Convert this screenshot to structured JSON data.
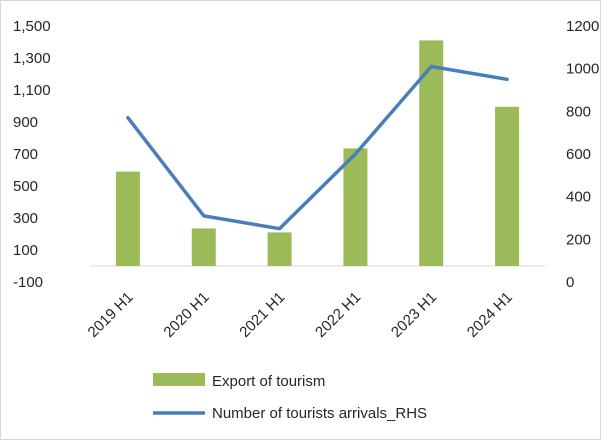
{
  "chart_data": {
    "type": "bar",
    "categories": [
      "2019 H1",
      "2020 H1",
      "2021 H1",
      "2022 H1",
      "2023 H1",
      "2024 H1"
    ],
    "series": [
      {
        "name": "Export of tourism",
        "type": "bar",
        "axis": "left",
        "color": "#9bbb59",
        "values": [
          590,
          235,
          210,
          735,
          1410,
          995
        ]
      },
      {
        "name": "Number of tourists arrivals_RHS",
        "type": "line",
        "axis": "right",
        "color": "#4a7ebb",
        "values": [
          770,
          310,
          250,
          600,
          1010,
          950
        ]
      }
    ],
    "y_left": {
      "ylim": [
        -100,
        1500
      ],
      "ticks": [
        -100,
        100,
        300,
        500,
        700,
        900,
        1100,
        1300,
        1500
      ],
      "tick_labels": [
        "-100",
        "100",
        "300",
        "500",
        "700",
        "900",
        "1,100",
        "1,300",
        "1,500"
      ]
    },
    "y_right": {
      "ylim": [
        0,
        1200
      ],
      "ticks": [
        0,
        200,
        400,
        600,
        800,
        1000,
        1200
      ],
      "tick_labels": [
        "0",
        "200",
        "400",
        "600",
        "800",
        "1000",
        "1200"
      ]
    },
    "x_baseline_value": 0,
    "legend_position": "bottom",
    "grid": false
  }
}
